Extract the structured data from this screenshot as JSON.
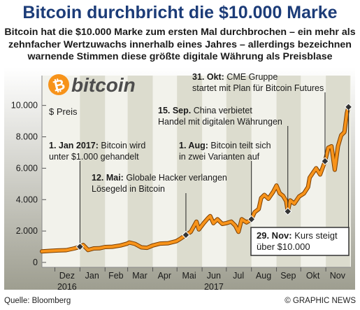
{
  "title": "Bitcoin durchbricht die $10.000 Marke",
  "subtitle": "Bitcoin hat die $10.000 Marke zum ersten Mal durchbrochen – ein mehr als zehnfacher Wertzuwachs innerhalb eines Jahres – allerdings bezeichnen warnende Stimmen diese größte digitale Währung als Preisblase",
  "logo_text": "bitcoin",
  "source": "Quelle: Bloomberg",
  "copyright": "© GRAPHIC NEWS",
  "colors": {
    "title": "#1c3c78",
    "line": "#f7931a",
    "line_outline": "#7a3d00",
    "band": "#dcdcce",
    "panel": "#f2f2eb",
    "gradient_top": "#ffffff",
    "gradient_bottom": "#9e9e90",
    "marker": "#333333",
    "callout_bg": "#ffffff"
  },
  "chart_data": {
    "type": "line",
    "ylabel": "$ Preis",
    "ylim": [
      0,
      11500
    ],
    "xlim": [
      "2016-11-15",
      "2017-12-02"
    ],
    "yticks": [
      0,
      2000,
      4000,
      6000,
      8000,
      10000
    ],
    "ytick_labels": [
      "0",
      "2.000",
      "4.000",
      "6.000",
      "8.000",
      "10.000"
    ],
    "months": [
      {
        "label": "Dez",
        "year": "2016",
        "start": "2016-12-01",
        "end": "2016-12-31"
      },
      {
        "label": "Jan",
        "year": "",
        "start": "2017-01-01",
        "end": "2017-01-31"
      },
      {
        "label": "Feb",
        "year": "",
        "start": "2017-02-01",
        "end": "2017-02-28"
      },
      {
        "label": "Mar",
        "year": "",
        "start": "2017-03-01",
        "end": "2017-03-31"
      },
      {
        "label": "Apr",
        "year": "",
        "start": "2017-04-01",
        "end": "2017-04-30"
      },
      {
        "label": "Mai",
        "year": "",
        "start": "2017-05-01",
        "end": "2017-05-31"
      },
      {
        "label": "Jun",
        "year": "2017",
        "start": "2017-06-01",
        "end": "2017-06-30"
      },
      {
        "label": "Jul",
        "year": "",
        "start": "2017-07-01",
        "end": "2017-07-31"
      },
      {
        "label": "Aug",
        "year": "",
        "start": "2017-08-01",
        "end": "2017-08-31"
      },
      {
        "label": "Sep",
        "year": "",
        "start": "2017-09-01",
        "end": "2017-09-30"
      },
      {
        "label": "Okt",
        "year": "",
        "start": "2017-10-01",
        "end": "2017-10-31"
      },
      {
        "label": "Nov",
        "year": "",
        "start": "2017-11-01",
        "end": "2017-11-30"
      }
    ],
    "series": [
      {
        "points": [
          [
            "2016-11-15",
            700
          ],
          [
            "2016-11-25",
            735
          ],
          [
            "2016-12-05",
            760
          ],
          [
            "2016-12-15",
            780
          ],
          [
            "2016-12-25",
            890
          ],
          [
            "2017-01-01",
            1000
          ],
          [
            "2017-01-05",
            1110
          ],
          [
            "2017-01-11",
            790
          ],
          [
            "2017-01-18",
            890
          ],
          [
            "2017-01-25",
            900
          ],
          [
            "2017-02-01",
            980
          ],
          [
            "2017-02-10",
            1000
          ],
          [
            "2017-02-20",
            1080
          ],
          [
            "2017-02-28",
            1190
          ],
          [
            "2017-03-03",
            1270
          ],
          [
            "2017-03-10",
            1180
          ],
          [
            "2017-03-18",
            960
          ],
          [
            "2017-03-25",
            930
          ],
          [
            "2017-04-01",
            1080
          ],
          [
            "2017-04-10",
            1200
          ],
          [
            "2017-04-20",
            1220
          ],
          [
            "2017-04-30",
            1350
          ],
          [
            "2017-05-05",
            1500
          ],
          [
            "2017-05-12",
            1750
          ],
          [
            "2017-05-18",
            1950
          ],
          [
            "2017-05-25",
            2600
          ],
          [
            "2017-05-28",
            2100
          ],
          [
            "2017-06-03",
            2500
          ],
          [
            "2017-06-08",
            2800
          ],
          [
            "2017-06-11",
            2950
          ],
          [
            "2017-06-15",
            2500
          ],
          [
            "2017-06-20",
            2750
          ],
          [
            "2017-06-26",
            2450
          ],
          [
            "2017-07-01",
            2500
          ],
          [
            "2017-07-07",
            2600
          ],
          [
            "2017-07-12",
            2350
          ],
          [
            "2017-07-16",
            1950
          ],
          [
            "2017-07-20",
            2750
          ],
          [
            "2017-07-26",
            2550
          ],
          [
            "2017-08-01",
            2750
          ],
          [
            "2017-08-05",
            3200
          ],
          [
            "2017-08-10",
            3400
          ],
          [
            "2017-08-13",
            4100
          ],
          [
            "2017-08-17",
            4300
          ],
          [
            "2017-08-22",
            4050
          ],
          [
            "2017-08-28",
            4500
          ],
          [
            "2017-09-01",
            4900
          ],
          [
            "2017-09-05",
            4400
          ],
          [
            "2017-09-09",
            4250
          ],
          [
            "2017-09-13",
            3900
          ],
          [
            "2017-09-15",
            3250
          ],
          [
            "2017-09-18",
            3950
          ],
          [
            "2017-09-23",
            3750
          ],
          [
            "2017-09-29",
            4200
          ],
          [
            "2017-10-05",
            4400
          ],
          [
            "2017-10-10",
            4800
          ],
          [
            "2017-10-12",
            5400
          ],
          [
            "2017-10-16",
            5700
          ],
          [
            "2017-10-20",
            6000
          ],
          [
            "2017-10-25",
            5600
          ],
          [
            "2017-10-31",
            6450
          ],
          [
            "2017-11-04",
            7300
          ],
          [
            "2017-11-08",
            7400
          ],
          [
            "2017-11-12",
            5900
          ],
          [
            "2017-11-16",
            7400
          ],
          [
            "2017-11-20",
            8100
          ],
          [
            "2017-11-24",
            8300
          ],
          [
            "2017-11-27",
            9500
          ],
          [
            "2017-11-29",
            9900
          ]
        ]
      }
    ],
    "annotations": [
      {
        "date": "2017-01-01",
        "value": 1000,
        "bold": "1. Jan 2017:",
        "text": "Bitcoin wird unter $1.000 gehandelt"
      },
      {
        "date": "2017-05-12",
        "value": 1750,
        "bold": "12. Mai:",
        "text": "Globale Hacker verlangen Lösegeld in Bitcoin"
      },
      {
        "date": "2017-08-01",
        "value": 2750,
        "bold": "1. Aug:",
        "text": "Bitcoin teilt sich in zwei Varianten auf"
      },
      {
        "date": "2017-09-15",
        "value": 3250,
        "bold": "15. Sep.",
        "text": "China verbietet Handel mit digitalen Währungen"
      },
      {
        "date": "2017-10-31",
        "value": 6450,
        "bold": "31. Okt:",
        "text": "CME Gruppe startet mit Plan für Bitcoin Futures"
      },
      {
        "date": "2017-11-29",
        "value": 9900,
        "bold": "29. Nov:",
        "text": "Kurs steigt über $10.000"
      }
    ]
  }
}
